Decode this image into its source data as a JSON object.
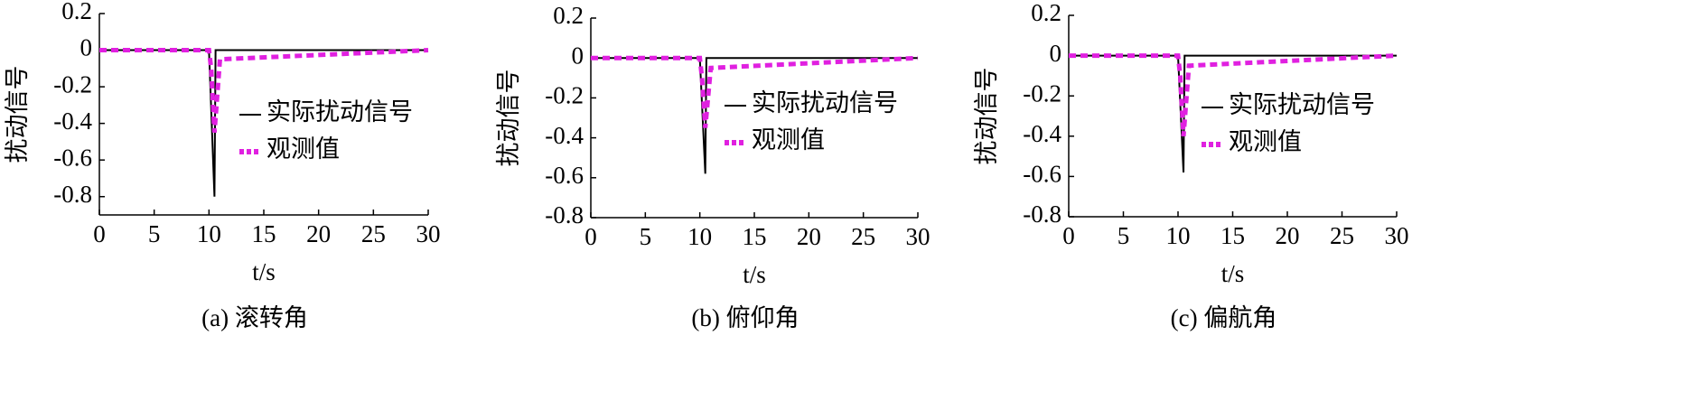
{
  "chart_data": [
    {
      "type": "line",
      "xlabel": "t/s",
      "ylabel": "扰动信号",
      "caption": "(a) 滚转角",
      "xlim": [
        0,
        30
      ],
      "xticks": [
        0,
        5,
        10,
        15,
        20,
        25,
        30
      ],
      "ylim": [
        -0.9,
        0.2
      ],
      "yticks": [
        0.2,
        0,
        -0.2,
        -0.4,
        -0.6,
        -0.8
      ],
      "series": [
        {
          "name": "实际扰动信号",
          "color": "#000000",
          "x": [
            0,
            10,
            10.5,
            10.6,
            30
          ],
          "values": [
            0,
            0,
            -0.8,
            0,
            0
          ]
        },
        {
          "name": "观测值",
          "color": "#e020e0",
          "x": [
            0,
            10,
            10.2,
            10.5,
            11,
            30
          ],
          "values": [
            0,
            0,
            -0.1,
            -0.45,
            -0.05,
            0
          ]
        }
      ]
    },
    {
      "type": "line",
      "xlabel": "t/s",
      "ylabel": "扰动信号",
      "caption": "(b) 俯仰角",
      "xlim": [
        0,
        30
      ],
      "xticks": [
        0,
        5,
        10,
        15,
        20,
        25,
        30
      ],
      "ylim": [
        -0.8,
        0.2
      ],
      "yticks": [
        0.2,
        0,
        -0.2,
        -0.4,
        -0.6,
        -0.8
      ],
      "series": [
        {
          "name": "实际扰动信号",
          "color": "#000000",
          "x": [
            0,
            10,
            10.5,
            10.6,
            30
          ],
          "values": [
            0,
            0,
            -0.58,
            0,
            0
          ]
        },
        {
          "name": "观测值",
          "color": "#e020e0",
          "x": [
            0,
            10,
            10.2,
            10.5,
            11,
            30
          ],
          "values": [
            0,
            0,
            -0.1,
            -0.35,
            -0.05,
            0
          ]
        }
      ]
    },
    {
      "type": "line",
      "xlabel": "t/s",
      "ylabel": "扰动信号",
      "caption": "(c) 偏航角",
      "xlim": [
        0,
        30
      ],
      "xticks": [
        0,
        5,
        10,
        15,
        20,
        25,
        30
      ],
      "ylim": [
        -0.8,
        0.2
      ],
      "yticks": [
        0.2,
        0,
        -0.2,
        -0.4,
        -0.6,
        -0.8
      ],
      "series": [
        {
          "name": "实际扰动信号",
          "color": "#000000",
          "x": [
            0,
            10,
            10.5,
            10.6,
            30
          ],
          "values": [
            0,
            0,
            -0.58,
            0,
            0
          ]
        },
        {
          "name": "观测值",
          "color": "#e020e0",
          "x": [
            0,
            10,
            10.2,
            10.5,
            11,
            30
          ],
          "values": [
            0,
            0,
            -0.1,
            -0.4,
            -0.05,
            0
          ]
        }
      ]
    }
  ]
}
